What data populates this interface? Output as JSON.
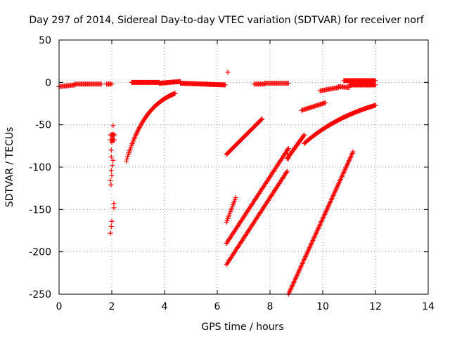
{
  "chart_data": {
    "type": "scatter",
    "title": "Day 297 of 2014, Sidereal Day-to-day VTEC variation (SDTVAR) for receiver norf",
    "xlabel": "GPS time / hours",
    "ylabel": "SDTVAR / TECUs",
    "xlim": [
      0,
      14
    ],
    "ylim": [
      -250,
      50
    ],
    "xticks": [
      0,
      2,
      4,
      6,
      8,
      10,
      12,
      14
    ],
    "yticks": [
      50,
      0,
      -50,
      -100,
      -150,
      -200,
      -250
    ],
    "grid": "on, dotted, at major ticks",
    "marker": "+",
    "color": "#ff0000",
    "series": [
      {
        "segments": [
          {
            "kind": "line",
            "from": [
              0.0,
              -5
            ],
            "to": [
              0.6,
              -3
            ],
            "step": 0.04
          },
          {
            "kind": "line",
            "from": [
              0.6,
              -2
            ],
            "to": [
              1.6,
              -2
            ],
            "step": 0.04
          },
          {
            "kind": "line",
            "from": [
              1.8,
              -2
            ],
            "to": [
              2.0,
              -2
            ],
            "step": 0.04
          },
          {
            "kind": "line",
            "from": [
              2.75,
              0
            ],
            "to": [
              3.8,
              0
            ],
            "step": 0.03
          },
          {
            "kind": "line",
            "from": [
              3.8,
              -1
            ],
            "to": [
              4.6,
              1
            ],
            "step": 0.03
          },
          {
            "kind": "line",
            "from": [
              4.6,
              -1
            ],
            "to": [
              6.3,
              -3
            ],
            "step": 0.03
          },
          {
            "kind": "line",
            "from": [
              7.4,
              -2
            ],
            "to": [
              7.8,
              -2
            ],
            "step": 0.04
          },
          {
            "kind": "line",
            "from": [
              7.8,
              -1
            ],
            "to": [
              8.7,
              -1
            ],
            "step": 0.04
          },
          {
            "kind": "line",
            "from": [
              9.9,
              -10
            ],
            "to": [
              10.6,
              -6
            ],
            "step": 0.04
          },
          {
            "kind": "line",
            "from": [
              10.6,
              -5
            ],
            "to": [
              11.0,
              -6
            ],
            "step": 0.04
          },
          {
            "kind": "line",
            "from": [
              10.8,
              2
            ],
            "to": [
              12.0,
              2
            ],
            "step": 0.03
          },
          {
            "kind": "line",
            "from": [
              11.0,
              -3
            ],
            "to": [
              12.0,
              -3
            ],
            "step": 0.03
          },
          {
            "kind": "point",
            "x": 6.4,
            "y": 12
          },
          {
            "kind": "curve",
            "from": [
              2.55,
              -93
            ],
            "to": [
              4.4,
              -13
            ],
            "k": 1.15,
            "step": 0.025
          },
          {
            "kind": "line",
            "from": [
              1.95,
              -62
            ],
            "to": [
              2.1,
              -62
            ],
            "step": 0.03
          },
          {
            "kind": "line",
            "from": [
              1.95,
              -68
            ],
            "to": [
              2.1,
              -68
            ],
            "step": 0.03
          },
          {
            "kind": "list",
            "pts": [
              [
                2.05,
                -51
              ],
              [
                2.05,
                -61
              ],
              [
                2.0,
                -71
              ],
              [
                1.98,
                -80
              ],
              [
                1.98,
                -88
              ],
              [
                2.05,
                -92
              ],
              [
                2.02,
                -98
              ],
              [
                1.98,
                -104
              ],
              [
                2.0,
                -110
              ],
              [
                1.95,
                -116
              ],
              [
                1.97,
                -121
              ],
              [
                2.08,
                -143
              ],
              [
                2.08,
                -148
              ],
              [
                2.0,
                -164
              ],
              [
                1.98,
                -170
              ],
              [
                1.95,
                -178
              ]
            ]
          },
          {
            "kind": "line",
            "from": [
              6.35,
              -85
            ],
            "to": [
              7.7,
              -43
            ],
            "step": 0.03
          },
          {
            "kind": "line",
            "from": [
              6.35,
              -165
            ],
            "to": [
              6.7,
              -136
            ],
            "step": 0.025
          },
          {
            "kind": "line",
            "from": [
              6.35,
              -190
            ],
            "to": [
              8.7,
              -78
            ],
            "step": 0.03
          },
          {
            "kind": "line",
            "from": [
              6.35,
              -215
            ],
            "to": [
              8.65,
              -105
            ],
            "step": 0.03
          },
          {
            "kind": "line",
            "from": [
              8.7,
              -250
            ],
            "to": [
              11.15,
              -82
            ],
            "step": 0.025
          },
          {
            "kind": "line",
            "from": [
              8.65,
              -90
            ],
            "to": [
              9.3,
              -62
            ],
            "step": 0.025
          },
          {
            "kind": "curve",
            "from": [
              9.3,
              -72
            ],
            "to": [
              12.0,
              -27
            ],
            "k": 0.4,
            "step": 0.03
          },
          {
            "kind": "line",
            "from": [
              9.2,
              -33
            ],
            "to": [
              10.1,
              -24
            ],
            "step": 0.04
          },
          {
            "kind": "line",
            "from": [
              8.65,
              -80
            ],
            "to": [
              8.7,
              -90
            ],
            "step": 0.02
          }
        ]
      }
    ]
  }
}
